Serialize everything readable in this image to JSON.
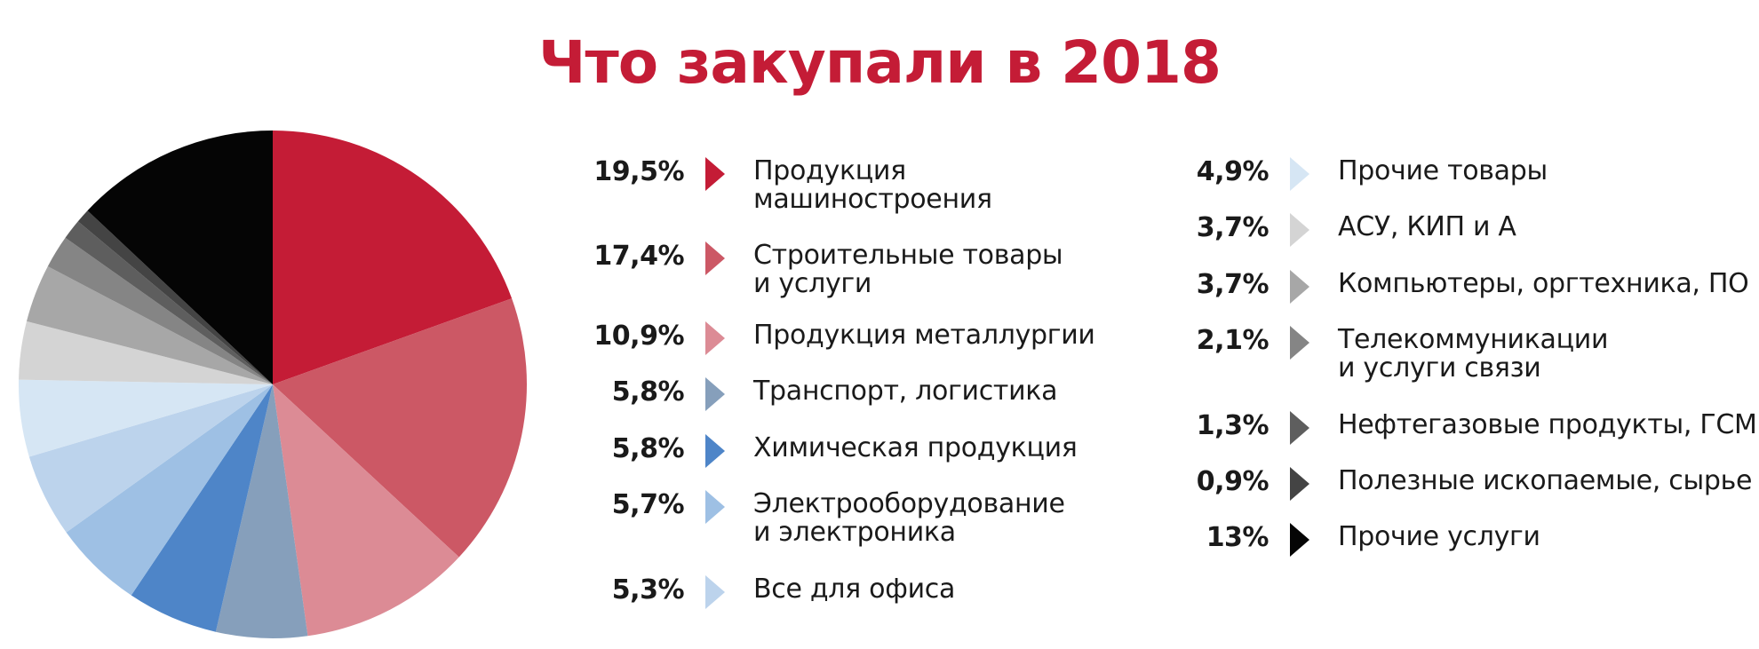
{
  "title": "Что закупали в 2018",
  "chart_data": {
    "type": "pie",
    "title": "Что закупали в 2018",
    "start_angle_deg": 0,
    "direction": "clockwise",
    "slices": [
      {
        "label": "Продукция\nмашиностроения",
        "pct_label": "19,5%",
        "value": 19.5,
        "color": "#c41c36"
      },
      {
        "label": "Строительные товары\nи услуги",
        "pct_label": "17,4%",
        "value": 17.4,
        "color": "#cc5865"
      },
      {
        "label": "Продукция металлургии",
        "pct_label": "10,9%",
        "value": 10.9,
        "color": "#dc8b95"
      },
      {
        "label": "Транспорт, логистика",
        "pct_label": "5,8%",
        "value": 5.8,
        "color": "#869fbb"
      },
      {
        "label": "Химическая продукция",
        "pct_label": "5,8%",
        "value": 5.8,
        "color": "#4e85c8"
      },
      {
        "label": "Электрооборудование\nи электроника",
        "pct_label": "5,7%",
        "value": 5.7,
        "color": "#9ec0e4"
      },
      {
        "label": "Все для офиса",
        "pct_label": "5,3%",
        "value": 5.3,
        "color": "#bcd3ec"
      },
      {
        "label": "Прочие товары",
        "pct_label": "4,9%",
        "value": 4.9,
        "color": "#d6e6f4"
      },
      {
        "label": "АСУ, КИП и А",
        "pct_label": "3,7%",
        "value": 3.7,
        "color": "#d4d4d4"
      },
      {
        "label": "Компьютеры, оргтехника, ПО",
        "pct_label": "3,7%",
        "value": 3.7,
        "color": "#a7a7a7"
      },
      {
        "label": "Телекоммуникации\nи услуги связи",
        "pct_label": "2,1%",
        "value": 2.1,
        "color": "#858585"
      },
      {
        "label": "Нефтегазовые продукты, ГСМ",
        "pct_label": "1,3%",
        "value": 1.3,
        "color": "#5e5e5e"
      },
      {
        "label": "Полезные ископаемые, сырье",
        "pct_label": "0,9%",
        "value": 0.9,
        "color": "#444444"
      },
      {
        "label": "Прочие услуги",
        "pct_label": "13%",
        "value": 13,
        "color": "#050505"
      }
    ]
  }
}
